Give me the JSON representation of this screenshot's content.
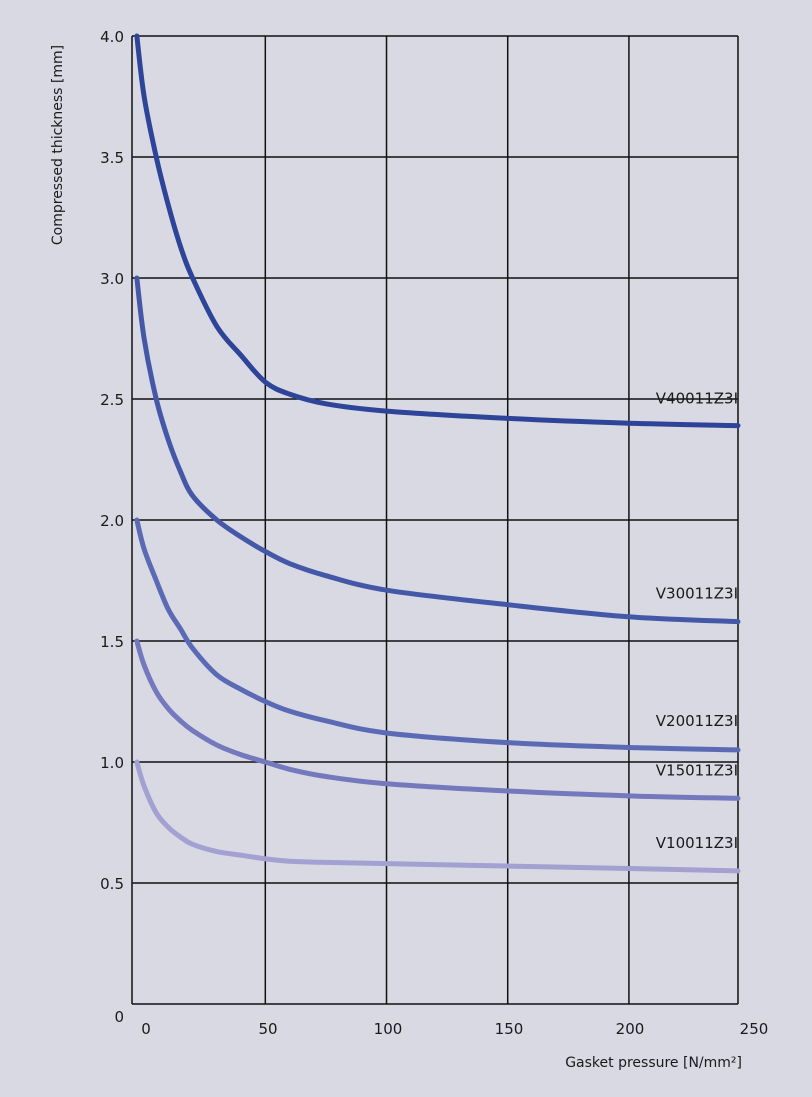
{
  "background_color": "#d8d9e3",
  "chart_data": {
    "type": "line",
    "title": "",
    "xlabel": "Gasket pressure [N/mm²]",
    "ylabel": "Compressed thickness [mm]",
    "xlim": [
      -5,
      245
    ],
    "ylim": [
      0,
      4.0
    ],
    "x_ticks": [
      0,
      50,
      100,
      150,
      200,
      250
    ],
    "x_tick_labels": [
      "0",
      "50",
      "100",
      "150",
      "200",
      "250"
    ],
    "y_ticks": [
      0,
      0.5,
      1.0,
      1.5,
      2.0,
      2.5,
      3.0,
      3.5,
      4.0
    ],
    "y_tick_labels": [
      "0",
      "0.5",
      "1.0",
      "1.5",
      "2.0",
      "2.5",
      "3.0",
      "3.5",
      "4.0"
    ],
    "grid": true,
    "legend": "none (series labeled inline near right end)",
    "series": [
      {
        "name": "V40011Z3I",
        "color": "#2e4499",
        "x": [
          -3,
          0,
          5,
          10,
          15,
          20,
          30,
          40,
          50,
          60,
          75,
          100,
          150,
          200,
          245
        ],
        "y": [
          4.0,
          3.75,
          3.5,
          3.3,
          3.13,
          3.0,
          2.8,
          2.68,
          2.57,
          2.52,
          2.48,
          2.45,
          2.42,
          2.4,
          2.39
        ]
      },
      {
        "name": "V30011Z3I",
        "color": "#4558a8",
        "x": [
          -3,
          0,
          5,
          10,
          15,
          20,
          30,
          40,
          50,
          60,
          75,
          100,
          150,
          200,
          245
        ],
        "y": [
          3.0,
          2.75,
          2.5,
          2.33,
          2.2,
          2.1,
          2.0,
          1.93,
          1.87,
          1.82,
          1.77,
          1.71,
          1.65,
          1.6,
          1.58
        ]
      },
      {
        "name": "V20011Z3I",
        "color": "#5a6ab5",
        "x": [
          -3,
          0,
          5,
          10,
          15,
          20,
          30,
          40,
          50,
          60,
          75,
          100,
          150,
          200,
          245
        ],
        "y": [
          2.0,
          1.88,
          1.75,
          1.63,
          1.55,
          1.47,
          1.36,
          1.3,
          1.25,
          1.21,
          1.17,
          1.12,
          1.08,
          1.06,
          1.05
        ]
      },
      {
        "name": "V15011Z3I",
        "color": "#7478bd",
        "x": [
          -3,
          0,
          5,
          10,
          15,
          20,
          30,
          40,
          50,
          60,
          75,
          100,
          150,
          200,
          245
        ],
        "y": [
          1.5,
          1.4,
          1.29,
          1.22,
          1.17,
          1.13,
          1.07,
          1.03,
          1.0,
          0.97,
          0.94,
          0.91,
          0.88,
          0.86,
          0.85
        ]
      },
      {
        "name": "V10011Z3I",
        "color": "#a3a0d2",
        "x": [
          -3,
          0,
          5,
          10,
          15,
          20,
          30,
          40,
          50,
          60,
          75,
          100,
          150,
          200,
          245
        ],
        "y": [
          1.0,
          0.9,
          0.79,
          0.73,
          0.69,
          0.66,
          0.63,
          0.615,
          0.6,
          0.59,
          0.585,
          0.58,
          0.57,
          0.56,
          0.55
        ]
      }
    ]
  }
}
